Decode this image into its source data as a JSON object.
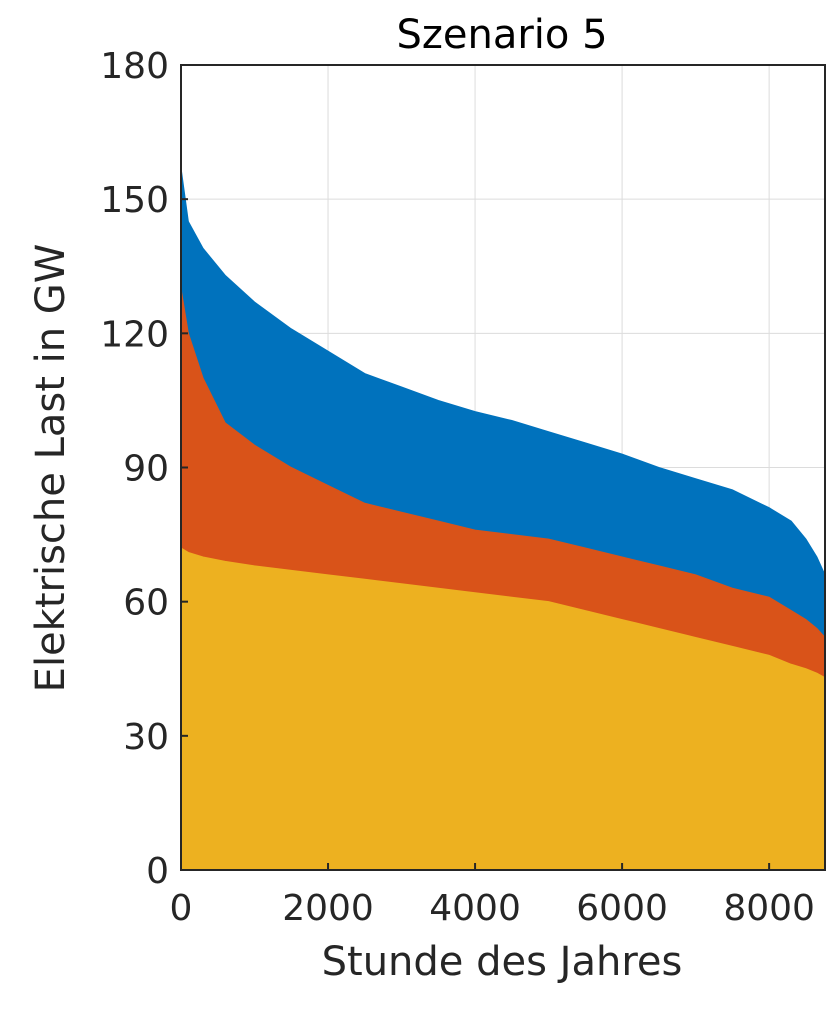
{
  "chart_data": {
    "type": "area",
    "title": "Szenario 5",
    "xlabel": "Stunde des Jahres",
    "ylabel": "Elektrische Last in GW",
    "xlim": [
      0,
      8760
    ],
    "ylim": [
      0,
      180
    ],
    "xticks": [
      0,
      2000,
      4000,
      6000,
      8000
    ],
    "yticks": [
      0,
      30,
      60,
      90,
      120,
      150,
      180
    ],
    "grid": true,
    "x": [
      0,
      100,
      300,
      600,
      1000,
      1500,
      2000,
      2500,
      3000,
      3500,
      4000,
      4500,
      5000,
      5500,
      6000,
      6500,
      7000,
      7500,
      8000,
      8300,
      8500,
      8650,
      8760
    ],
    "series": [
      {
        "color": "#EDB120",
        "values": [
          72,
          71,
          70,
          69,
          68,
          67,
          66,
          65,
          64,
          63,
          62,
          61,
          60,
          58,
          56,
          54,
          52,
          50,
          48,
          46,
          45,
          44,
          43
        ]
      },
      {
        "color": "#D95319",
        "values": [
          130,
          120,
          110,
          100,
          95,
          90,
          86,
          82,
          80,
          78,
          76,
          75,
          74,
          72,
          70,
          68,
          66,
          63,
          61,
          58,
          56,
          54,
          52
        ]
      },
      {
        "color": "#0072BD",
        "values": [
          157,
          145,
          139,
          133,
          127,
          121,
          116,
          111,
          108,
          105,
          102.5,
          100.5,
          98,
          95.5,
          93,
          90,
          87.5,
          85,
          81,
          78,
          74,
          70,
          66
        ]
      }
    ]
  }
}
